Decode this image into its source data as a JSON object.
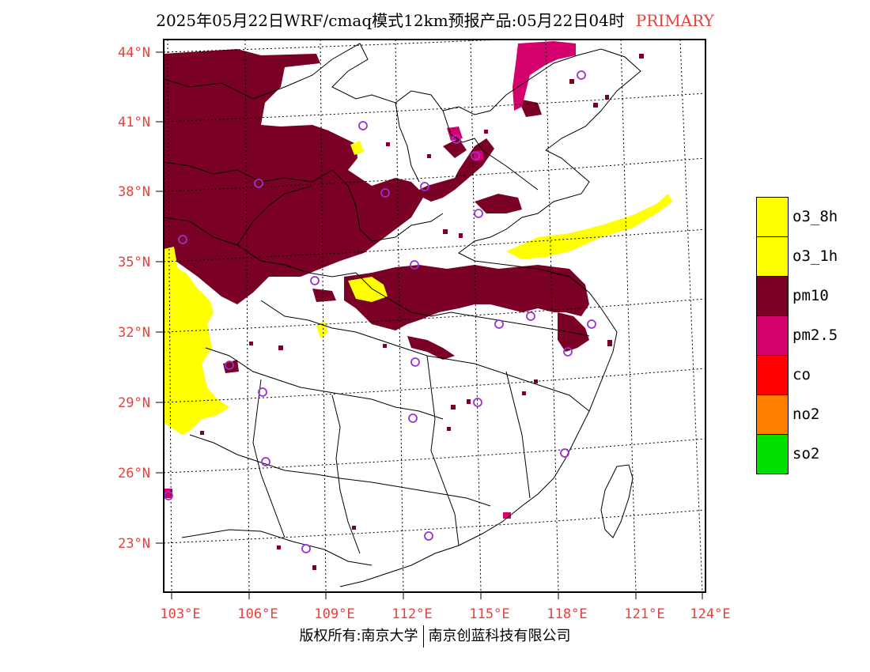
{
  "header": {
    "title": "2025年05月22日WRF/cmaq模式12km预报产品:05月22日04时",
    "badge": "PRIMARY"
  },
  "axes": {
    "lat_labels": [
      "44°N",
      "41°N",
      "38°N",
      "35°N",
      "32°N",
      "29°N",
      "26°N",
      "23°N"
    ],
    "lon_labels": [
      "103°E",
      "106°E",
      "109°E",
      "112°E",
      "115°E",
      "118°E",
      "121°E",
      "124°E"
    ]
  },
  "legend": {
    "items": [
      {
        "label": "o3_8h",
        "color": "#ffff00"
      },
      {
        "label": "o3_1h",
        "color": "#ffff00"
      },
      {
        "label": "pm10",
        "color": "#7a0026"
      },
      {
        "label": "pm2.5",
        "color": "#d4006e"
      },
      {
        "label": "co",
        "color": "#ff0000"
      },
      {
        "label": "no2",
        "color": "#ff8000"
      },
      {
        "label": "so2",
        "color": "#00e000"
      }
    ]
  },
  "footer": {
    "left": "版权所有:南京大学",
    "right": "南京创蓝科技有限公司"
  },
  "colors": {
    "pm10": "#7a0026",
    "pm25": "#d4006e",
    "o3": "#ffff00",
    "axis_label": "#e8413c",
    "station_marker": "#9933cc"
  }
}
